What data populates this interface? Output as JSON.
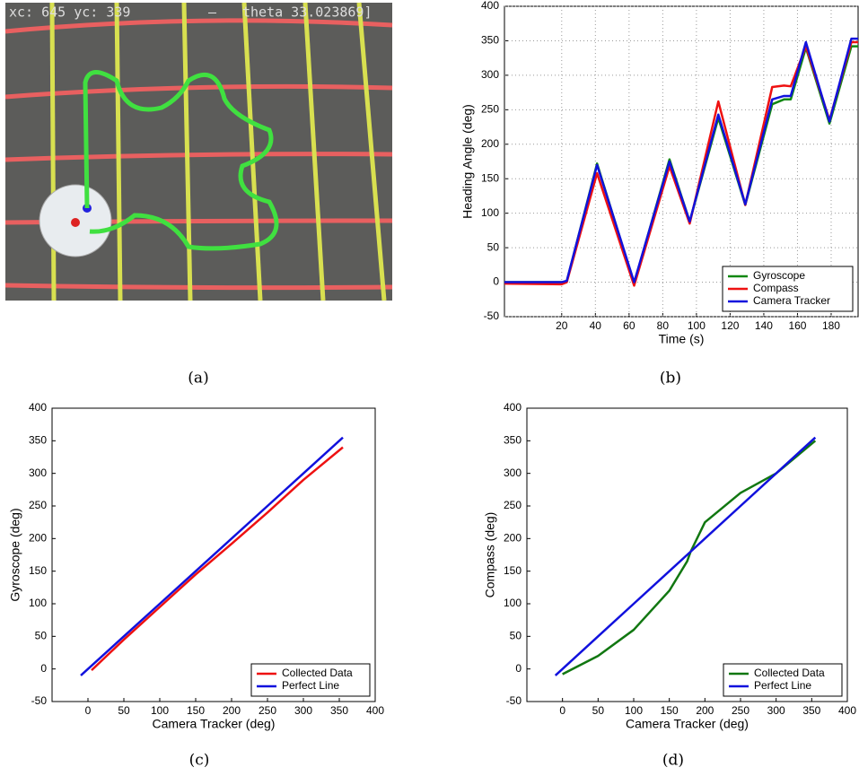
{
  "photo": {
    "overlay_left": "xc: 645 yc: 339",
    "overlay_mid": "—",
    "overlay_right": "theta 33.023869]"
  },
  "captions": [
    "(a)",
    "(b)",
    "(c)",
    "(d)"
  ],
  "chart_data": [
    {
      "type": "line",
      "xlabel": "Time (s)",
      "ylabel": "Heading Angle (deg)",
      "x": [
        -14,
        20,
        23,
        41,
        63,
        84,
        96,
        113,
        129,
        145,
        152,
        156,
        165,
        179,
        192,
        196
      ],
      "series": [
        {
          "name": "Gyroscope",
          "color": "#118811",
          "values": [
            0,
            0,
            1,
            172,
            -2,
            178,
            88,
            238,
            112,
            258,
            265,
            265,
            340,
            230,
            342,
            342
          ]
        },
        {
          "name": "Compass",
          "color": "#ee1111",
          "values": [
            -2,
            -3,
            0,
            158,
            -5,
            168,
            85,
            262,
            112,
            283,
            285,
            284,
            342,
            235,
            348,
            348
          ]
        },
        {
          "name": "Camera Tracker",
          "color": "#1111dd",
          "values": [
            0,
            0,
            2,
            170,
            0,
            175,
            88,
            243,
            113,
            265,
            270,
            270,
            348,
            233,
            353,
            353
          ]
        }
      ],
      "xlim": [
        -14,
        196
      ],
      "xticks": [
        20,
        40,
        60,
        80,
        100,
        120,
        140,
        160,
        180
      ],
      "ylim": [
        -50,
        400
      ],
      "yticks": [
        -50,
        0,
        50,
        100,
        150,
        200,
        250,
        300,
        350,
        400
      ],
      "grid": true,
      "legend": "bottom-right"
    },
    {
      "type": "line",
      "xlabel": "Camera Tracker (deg)",
      "ylabel": "Gyroscope (deg)",
      "x": [
        -10,
        5,
        50,
        100,
        150,
        200,
        250,
        300,
        355
      ],
      "series": [
        {
          "name": "Collected Data",
          "color": "#ee1111",
          "values": [
            null,
            -2,
            45,
            95,
            145,
            192,
            240,
            290,
            340
          ]
        },
        {
          "name": "Perfect Line",
          "color": "#1111dd",
          "values": [
            -10,
            5,
            50,
            100,
            150,
            200,
            250,
            300,
            355
          ]
        }
      ],
      "xlim": [
        -50,
        400
      ],
      "xticks": [
        0,
        50,
        100,
        150,
        200,
        250,
        300,
        350,
        400
      ],
      "ylim": [
        -50,
        400
      ],
      "yticks": [
        -50,
        0,
        50,
        100,
        150,
        200,
        250,
        300,
        350,
        400
      ],
      "grid": false,
      "legend": "bottom-right"
    },
    {
      "type": "line",
      "xlabel": "Camera Tracker (deg)",
      "ylabel": "Compass (deg)",
      "x": [
        -10,
        0,
        50,
        100,
        150,
        175,
        180,
        200,
        250,
        300,
        355
      ],
      "series": [
        {
          "name": "Collected Data",
          "color": "#117711",
          "values": [
            null,
            -8,
            20,
            60,
            120,
            165,
            180,
            225,
            270,
            300,
            350
          ]
        },
        {
          "name": "Perfect Line",
          "color": "#1111dd",
          "values": [
            -10,
            0,
            50,
            100,
            150,
            175,
            180,
            200,
            250,
            300,
            355
          ]
        }
      ],
      "xlim": [
        -50,
        400
      ],
      "xticks": [
        0,
        50,
        100,
        150,
        200,
        250,
        300,
        350,
        400
      ],
      "ylim": [
        -50,
        400
      ],
      "yticks": [
        -50,
        0,
        50,
        100,
        150,
        200,
        250,
        300,
        350,
        400
      ],
      "grid": false,
      "legend": "bottom-right"
    }
  ]
}
